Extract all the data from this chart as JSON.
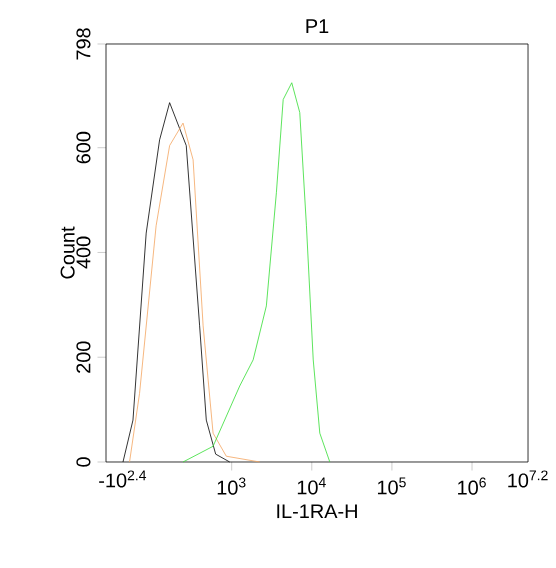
{
  "chart_data": {
    "type": "line",
    "title": "P1",
    "xlabel": "IL-1RA-H",
    "ylabel": "Count",
    "log": "x",
    "xlim": [
      27,
      5000000
    ],
    "ylim": [
      0,
      798
    ],
    "xticks": [
      {
        "value": 1000,
        "label": "10$^{3}$"
      },
      {
        "value": 10000,
        "label": "10$^{4}$"
      },
      {
        "value": 100000,
        "label": "10$^{5}$"
      },
      {
        "value": 1000000,
        "label": "10$^{6}$"
      }
    ],
    "yticks": [
      0,
      200,
      400,
      600,
      798
    ],
    "annotations": [
      "-10$^{2.4}$",
      "10$^{7.2}$"
    ],
    "marker": "none",
    "line_style": "solid",
    "series": [
      {
        "color": "#000000",
        "x": [
          44,
          58.6,
          85.7,
          126,
          168,
          271,
          398,
          482,
          631,
          944
        ],
        "values": [
          0,
          80,
          437,
          615,
          686,
          604,
          260,
          80,
          15,
          0
        ]
      },
      {
        "color": "#f4a460",
        "x": [
          53.1,
          70.8,
          114,
          168,
          247,
          330,
          440,
          586,
          857,
          2239
        ],
        "values": [
          0,
          131,
          451,
          604,
          647,
          577,
          260,
          55,
          11,
          0
        ]
      },
      {
        "color": "#33dd33",
        "x": [
          247,
          586,
          1259,
          1854,
          2710,
          3614,
          4395,
          5623,
          7079,
          8570,
          10420,
          12590,
          16790
        ],
        "values": [
          0,
          30,
          145,
          195,
          298,
          514,
          692,
          724,
          667,
          451,
          195,
          55,
          0
        ]
      }
    ]
  }
}
